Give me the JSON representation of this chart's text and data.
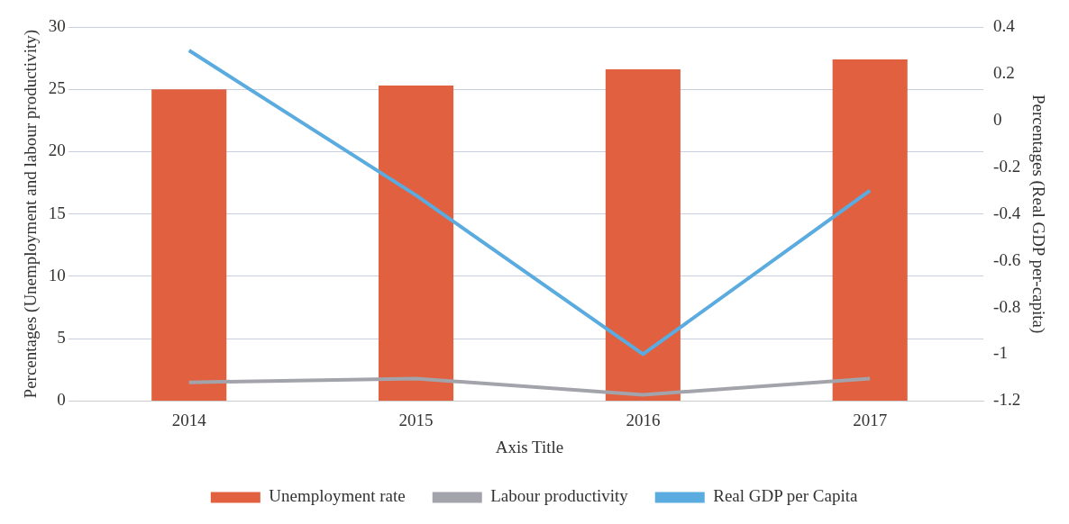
{
  "chart_data": {
    "type": "bar",
    "xlabel": "Axis Title",
    "ylabel": "Percentages (Unemployment and labour productivity)",
    "y2label": "Percentages (Real GDP per-capita)",
    "categories": [
      "2014",
      "2015",
      "2016",
      "2017"
    ],
    "series": [
      {
        "name": "Unemployment rate",
        "color": "#e0603f",
        "values": [
          25.0,
          25.3,
          26.6,
          27.4
        ]
      },
      {
        "name": "Labour productivity",
        "type": "line",
        "color": "#a3a3ab",
        "values": [
          1.5,
          1.8,
          0.5,
          1.8
        ]
      },
      {
        "name": "Real GDP per Capita",
        "type": "line",
        "axis": "y2",
        "color": "#5aabdf",
        "values": [
          0.3,
          -0.32,
          -1.0,
          -0.3
        ]
      }
    ],
    "ylim": [
      0,
      30
    ],
    "yticks": [
      0,
      5,
      10,
      15,
      20,
      25,
      30
    ],
    "y2lim": [
      -1.2,
      0.4
    ],
    "y2ticks": [
      -1.2,
      -1,
      -0.8,
      -0.6,
      -0.4,
      -0.2,
      0,
      0.2,
      0.4
    ],
    "grid": "y",
    "legend": "bottom",
    "marker": "none"
  }
}
